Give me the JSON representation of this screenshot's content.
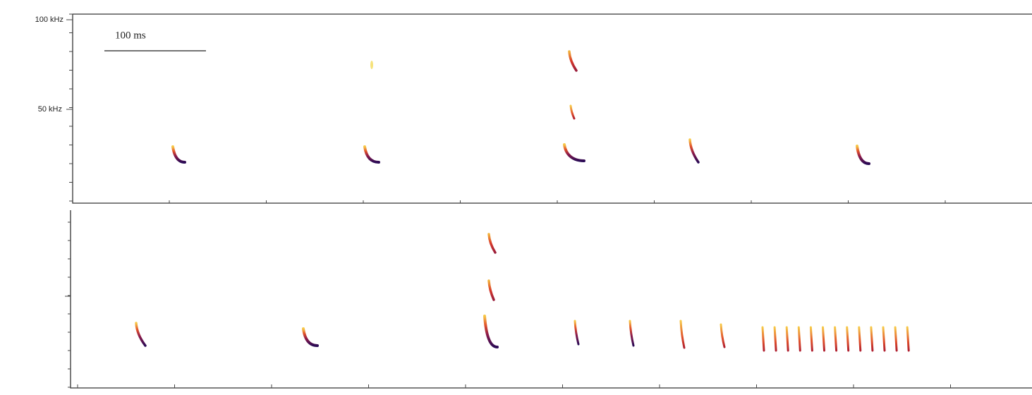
{
  "axis": {
    "ticks": [
      "100 kHz",
      "50 kHz"
    ]
  },
  "scale_bar": {
    "label": "100 ms"
  }
}
